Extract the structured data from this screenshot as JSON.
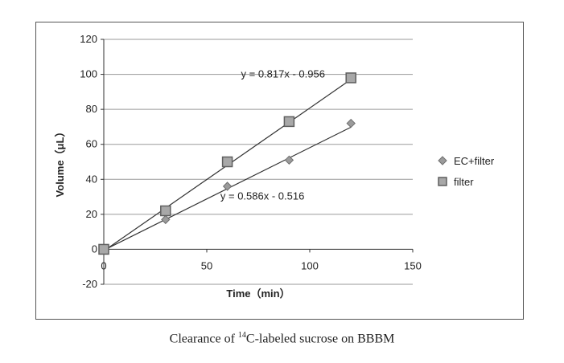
{
  "chart_data": {
    "type": "scatter",
    "xlabel": "Time（min）",
    "ylabel": "Volume（μL）",
    "xlim": [
      0,
      150
    ],
    "ylim": [
      -20,
      120
    ],
    "x_ticks": [
      0,
      50,
      100,
      150
    ],
    "y_ticks": [
      -20,
      0,
      20,
      40,
      60,
      80,
      100,
      120
    ],
    "grid": "horizontal",
    "legend_position": "right",
    "series": [
      {
        "name": "EC+filter",
        "marker": "diamond",
        "color": "#8c8c8c",
        "x": [
          0,
          30,
          60,
          90,
          120
        ],
        "y": [
          0,
          17,
          36,
          51,
          72
        ],
        "trendline": {
          "slope": 0.586,
          "intercept": -0.516,
          "label": "y = 0.586x - 0.516"
        }
      },
      {
        "name": "filter",
        "marker": "square",
        "color": "#9a9a9a",
        "x": [
          0,
          30,
          60,
          90,
          120
        ],
        "y": [
          0,
          22,
          50,
          73,
          98
        ],
        "trendline": {
          "slope": 0.817,
          "intercept": -0.956,
          "label": "y = 0.817x - 0.956"
        }
      }
    ]
  },
  "caption": {
    "prefix": "Clearance of ",
    "superscript": "14",
    "suffix": "C-labeled sucrose on BBBM"
  }
}
